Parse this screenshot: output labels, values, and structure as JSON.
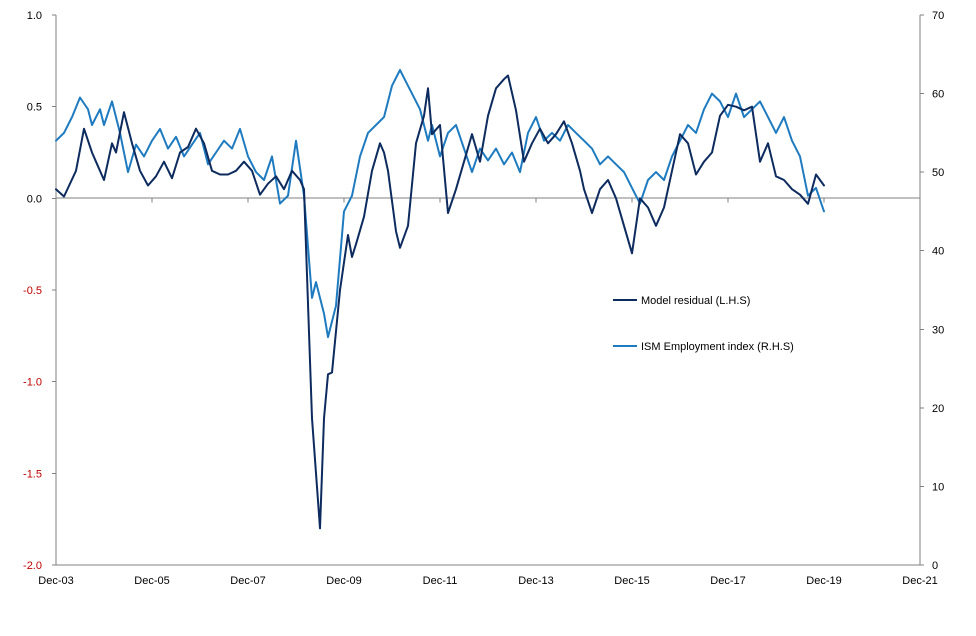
{
  "chart_data": {
    "type": "line",
    "title": "",
    "xlabel": "",
    "x_axis": {
      "min": "2003-12",
      "max": "2021-12",
      "ticks": [
        "2003-12",
        "2005-12",
        "2007-12",
        "2009-12",
        "2011-12",
        "2013-12",
        "2015-12",
        "2017-12",
        "2019-12",
        "2021-12"
      ],
      "tick_labels": [
        "Dec-03",
        "Dec-05",
        "Dec-07",
        "Dec-09",
        "Dec-11",
        "Dec-13",
        "Dec-15",
        "Dec-17",
        "Dec-19",
        "Dec-21"
      ]
    },
    "y_left": {
      "ylim": [
        -2.0,
        1.0
      ],
      "ticks": [
        -2.0,
        -1.5,
        -1.0,
        -0.5,
        0.0,
        0.5,
        1.0
      ],
      "tick_labels": [
        "-2.0",
        "-1.5",
        "-1.0",
        "-0.5",
        "0.0",
        "0.5",
        "1.0"
      ],
      "negative_label_color": "#c00000"
    },
    "y_right": {
      "ylim": [
        0,
        70
      ],
      "ticks": [
        0,
        10,
        20,
        30,
        40,
        50,
        60,
        70
      ],
      "tick_labels": [
        "0",
        "10",
        "20",
        "30",
        "40",
        "50",
        "60",
        "70"
      ]
    },
    "grid": false,
    "legend_position": "right-center",
    "series": [
      {
        "name": "Model residual (L.H.S)",
        "axis": "left",
        "color": "#0d2b5e",
        "points": [
          [
            "2003-12",
            0.05
          ],
          [
            "2004-02",
            0.01
          ],
          [
            "2004-05",
            0.15
          ],
          [
            "2004-07",
            0.38
          ],
          [
            "2004-09",
            0.25
          ],
          [
            "2004-10",
            0.2
          ],
          [
            "2004-12",
            0.1
          ],
          [
            "2005-02",
            0.3
          ],
          [
            "2005-03",
            0.25
          ],
          [
            "2005-05",
            0.47
          ],
          [
            "2005-07",
            0.3
          ],
          [
            "2005-09",
            0.15
          ],
          [
            "2005-11",
            0.07
          ],
          [
            "2006-01",
            0.12
          ],
          [
            "2006-03",
            0.2
          ],
          [
            "2006-05",
            0.11
          ],
          [
            "2006-07",
            0.25
          ],
          [
            "2006-09",
            0.28
          ],
          [
            "2006-11",
            0.38
          ],
          [
            "2007-01",
            0.3
          ],
          [
            "2007-03",
            0.15
          ],
          [
            "2007-05",
            0.13
          ],
          [
            "2007-07",
            0.13
          ],
          [
            "2007-09",
            0.15
          ],
          [
            "2007-11",
            0.2
          ],
          [
            "2008-01",
            0.15
          ],
          [
            "2008-03",
            0.02
          ],
          [
            "2008-05",
            0.08
          ],
          [
            "2008-07",
            0.12
          ],
          [
            "2008-09",
            0.05
          ],
          [
            "2008-11",
            0.15
          ],
          [
            "2009-01",
            0.1
          ],
          [
            "2009-02",
            0.05
          ],
          [
            "2009-04",
            -1.2
          ],
          [
            "2009-06",
            -1.8
          ],
          [
            "2009-07",
            -1.2
          ],
          [
            "2009-08",
            -0.96
          ],
          [
            "2009-09",
            -0.95
          ],
          [
            "2009-11",
            -0.5
          ],
          [
            "2010-01",
            -0.2
          ],
          [
            "2010-02",
            -0.32
          ],
          [
            "2010-03",
            -0.25
          ],
          [
            "2010-05",
            -0.1
          ],
          [
            "2010-07",
            0.15
          ],
          [
            "2010-09",
            0.3
          ],
          [
            "2010-10",
            0.25
          ],
          [
            "2010-11",
            0.15
          ],
          [
            "2011-01",
            -0.18
          ],
          [
            "2011-02",
            -0.27
          ],
          [
            "2011-04",
            -0.15
          ],
          [
            "2011-06",
            0.3
          ],
          [
            "2011-08",
            0.45
          ],
          [
            "2011-09",
            0.6
          ],
          [
            "2011-10",
            0.35
          ],
          [
            "2011-12",
            0.4
          ],
          [
            "2012-02",
            -0.08
          ],
          [
            "2012-04",
            0.05
          ],
          [
            "2012-06",
            0.2
          ],
          [
            "2012-08",
            0.35
          ],
          [
            "2012-10",
            0.2
          ],
          [
            "2012-12",
            0.45
          ],
          [
            "2013-02",
            0.6
          ],
          [
            "2013-04",
            0.65
          ],
          [
            "2013-05",
            0.67
          ],
          [
            "2013-07",
            0.48
          ],
          [
            "2013-09",
            0.2
          ],
          [
            "2013-11",
            0.3
          ],
          [
            "2014-01",
            0.38
          ],
          [
            "2014-03",
            0.3
          ],
          [
            "2014-05",
            0.35
          ],
          [
            "2014-07",
            0.42
          ],
          [
            "2014-09",
            0.3
          ],
          [
            "2014-11",
            0.15
          ],
          [
            "2014-12",
            0.05
          ],
          [
            "2015-02",
            -0.08
          ],
          [
            "2015-04",
            0.05
          ],
          [
            "2015-06",
            0.1
          ],
          [
            "2015-08",
            0.0
          ],
          [
            "2015-10",
            -0.15
          ],
          [
            "2015-12",
            -0.3
          ],
          [
            "2016-02",
            0.0
          ],
          [
            "2016-04",
            -0.05
          ],
          [
            "2016-06",
            -0.15
          ],
          [
            "2016-08",
            -0.05
          ],
          [
            "2016-10",
            0.15
          ],
          [
            "2016-12",
            0.35
          ],
          [
            "2017-02",
            0.3
          ],
          [
            "2017-04",
            0.13
          ],
          [
            "2017-06",
            0.2
          ],
          [
            "2017-08",
            0.25
          ],
          [
            "2017-10",
            0.45
          ],
          [
            "2017-12",
            0.51
          ],
          [
            "2018-02",
            0.5
          ],
          [
            "2018-04",
            0.48
          ],
          [
            "2018-06",
            0.5
          ],
          [
            "2018-08",
            0.2
          ],
          [
            "2018-10",
            0.3
          ],
          [
            "2018-12",
            0.12
          ],
          [
            "2019-02",
            0.1
          ],
          [
            "2019-04",
            0.05
          ],
          [
            "2019-06",
            0.02
          ],
          [
            "2019-08",
            -0.03
          ],
          [
            "2019-10",
            0.13
          ],
          [
            "2019-12",
            0.07
          ]
        ]
      },
      {
        "name": "ISM Employment index (R.H.S)",
        "axis": "right",
        "color": "#1f7bc0",
        "points": [
          [
            "2003-12",
            54
          ],
          [
            "2004-02",
            55
          ],
          [
            "2004-04",
            57
          ],
          [
            "2004-06",
            59.5
          ],
          [
            "2004-08",
            58
          ],
          [
            "2004-09",
            56
          ],
          [
            "2004-11",
            58
          ],
          [
            "2004-12",
            56
          ],
          [
            "2005-02",
            59
          ],
          [
            "2005-04",
            55
          ],
          [
            "2005-06",
            50
          ],
          [
            "2005-08",
            53.5
          ],
          [
            "2005-10",
            52
          ],
          [
            "2005-12",
            54
          ],
          [
            "2006-02",
            55.5
          ],
          [
            "2006-04",
            53
          ],
          [
            "2006-06",
            54.5
          ],
          [
            "2006-08",
            52
          ],
          [
            "2006-10",
            53.5
          ],
          [
            "2006-12",
            55
          ],
          [
            "2007-02",
            51
          ],
          [
            "2007-04",
            52.5
          ],
          [
            "2007-06",
            54
          ],
          [
            "2007-08",
            53
          ],
          [
            "2007-10",
            55.5
          ],
          [
            "2007-12",
            52
          ],
          [
            "2008-02",
            50
          ],
          [
            "2008-04",
            49
          ],
          [
            "2008-06",
            52
          ],
          [
            "2008-08",
            46
          ],
          [
            "2008-10",
            47
          ],
          [
            "2008-12",
            54
          ],
          [
            "2009-02",
            47
          ],
          [
            "2009-04",
            34
          ],
          [
            "2009-05",
            36
          ],
          [
            "2009-07",
            32
          ],
          [
            "2009-08",
            29
          ],
          [
            "2009-10",
            33
          ],
          [
            "2009-12",
            45
          ],
          [
            "2010-02",
            47
          ],
          [
            "2010-04",
            52
          ],
          [
            "2010-06",
            55
          ],
          [
            "2010-08",
            56
          ],
          [
            "2010-10",
            57
          ],
          [
            "2010-12",
            61
          ],
          [
            "2011-02",
            63
          ],
          [
            "2011-03",
            62
          ],
          [
            "2011-05",
            60
          ],
          [
            "2011-07",
            58
          ],
          [
            "2011-09",
            54
          ],
          [
            "2011-10",
            56
          ],
          [
            "2011-12",
            52
          ],
          [
            "2012-02",
            55
          ],
          [
            "2012-04",
            56
          ],
          [
            "2012-06",
            53
          ],
          [
            "2012-08",
            50
          ],
          [
            "2012-10",
            53
          ],
          [
            "2012-12",
            51.5
          ],
          [
            "2013-02",
            53
          ],
          [
            "2013-04",
            51
          ],
          [
            "2013-06",
            52.5
          ],
          [
            "2013-08",
            50
          ],
          [
            "2013-10",
            55
          ],
          [
            "2013-12",
            57
          ],
          [
            "2014-02",
            54
          ],
          [
            "2014-04",
            55
          ],
          [
            "2014-06",
            54
          ],
          [
            "2014-08",
            56
          ],
          [
            "2014-10",
            55
          ],
          [
            "2014-12",
            54
          ],
          [
            "2015-02",
            53
          ],
          [
            "2015-04",
            51
          ],
          [
            "2015-06",
            52
          ],
          [
            "2015-08",
            51
          ],
          [
            "2015-10",
            50
          ],
          [
            "2015-12",
            48
          ],
          [
            "2016-02",
            46
          ],
          [
            "2016-04",
            49
          ],
          [
            "2016-06",
            50
          ],
          [
            "2016-08",
            49
          ],
          [
            "2016-10",
            52
          ],
          [
            "2016-12",
            54
          ],
          [
            "2017-02",
            56
          ],
          [
            "2017-04",
            55
          ],
          [
            "2017-06",
            58
          ],
          [
            "2017-08",
            60
          ],
          [
            "2017-10",
            59
          ],
          [
            "2017-12",
            57
          ],
          [
            "2018-02",
            60
          ],
          [
            "2018-04",
            57
          ],
          [
            "2018-06",
            58
          ],
          [
            "2018-08",
            59
          ],
          [
            "2018-10",
            57
          ],
          [
            "2018-12",
            55
          ],
          [
            "2019-02",
            57
          ],
          [
            "2019-04",
            54
          ],
          [
            "2019-06",
            52
          ],
          [
            "2019-08",
            47
          ],
          [
            "2019-10",
            48
          ],
          [
            "2019-12",
            45
          ]
        ]
      }
    ]
  }
}
